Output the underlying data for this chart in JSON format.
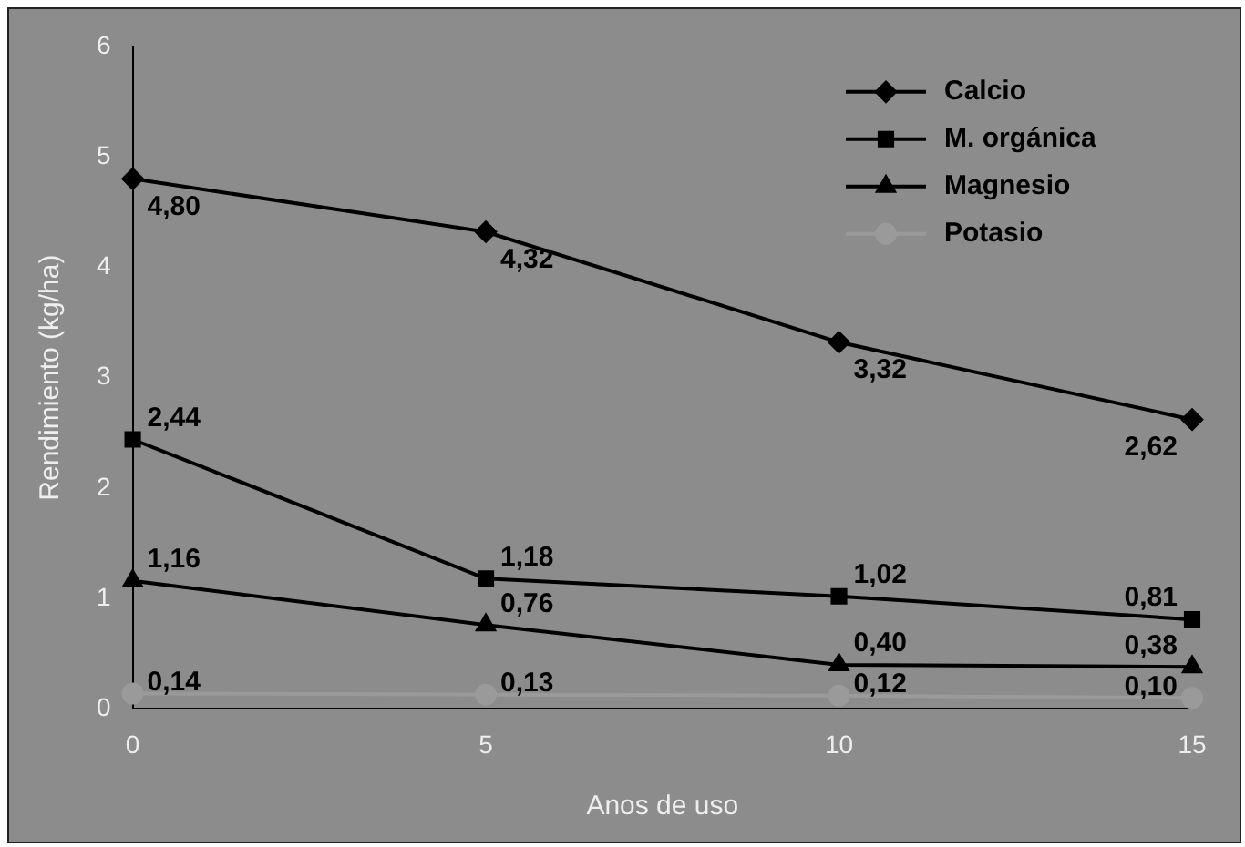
{
  "chart_data": {
    "type": "line",
    "xlabel": "Anos de uso",
    "ylabel": "Rendimiento (kg/ha)",
    "x": [
      0,
      5,
      10,
      15
    ],
    "xlim": [
      0,
      15
    ],
    "xticks": [
      0,
      5,
      10,
      15
    ],
    "ylim": [
      0,
      6
    ],
    "yticks": [
      0,
      1,
      2,
      3,
      4,
      5,
      6
    ],
    "grid": false,
    "legend": "top right",
    "line_style": "solid",
    "series": [
      {
        "name": "Calcio",
        "color": "#000000",
        "marker": "diamond",
        "values": [
          4.8,
          4.32,
          3.32,
          2.62
        ],
        "value_labels": [
          "4,80",
          "4,32",
          "3,32",
          "2,62"
        ]
      },
      {
        "name": "M. orgánica",
        "color": "#000000",
        "marker": "square",
        "values": [
          2.44,
          1.18,
          1.02,
          0.81
        ],
        "value_labels": [
          "2,44",
          "1,18",
          "1,02",
          "0,81"
        ]
      },
      {
        "name": "Magnesio",
        "color": "#000000",
        "marker": "triangle",
        "values": [
          1.16,
          0.76,
          0.4,
          0.38
        ],
        "value_labels": [
          "1,16",
          "0,76",
          "0,40",
          "0,38"
        ]
      },
      {
        "name": "Potasio",
        "color": "#9a9a9a",
        "marker": "circle",
        "values": [
          0.14,
          0.13,
          0.12,
          0.1
        ],
        "value_labels": [
          "0,14",
          "0,13",
          "0,12",
          "0,10"
        ]
      }
    ]
  }
}
